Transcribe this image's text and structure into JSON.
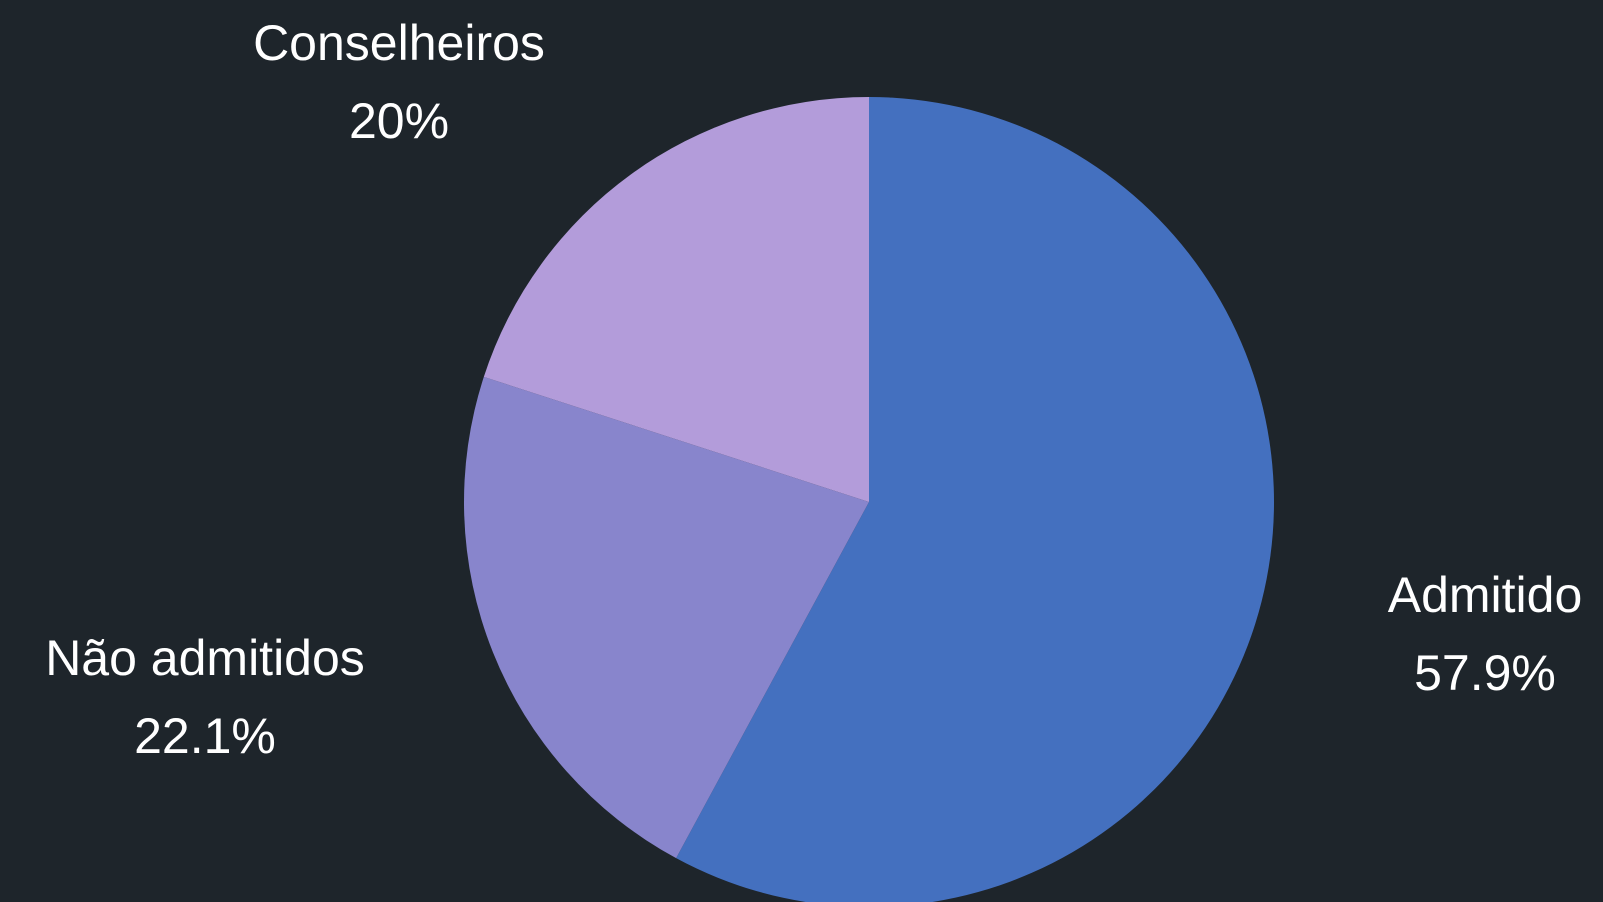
{
  "colors": {
    "background": "#1e252b",
    "label_text": "#ffffff"
  },
  "chart_data": {
    "type": "pie",
    "slices": [
      {
        "label": "Admitido",
        "value_label": "57.9%",
        "value": 57.9,
        "color": "#4470bf"
      },
      {
        "label": "Não admitidos",
        "value_label": "22.1%",
        "value": 22.1,
        "color": "#8885cc"
      },
      {
        "label": "Conselheiros",
        "value_label": "20%",
        "value": 20,
        "color": "#b39cda"
      }
    ],
    "start_angle_deg": 0,
    "direction": "clockwise",
    "legend": "none"
  }
}
